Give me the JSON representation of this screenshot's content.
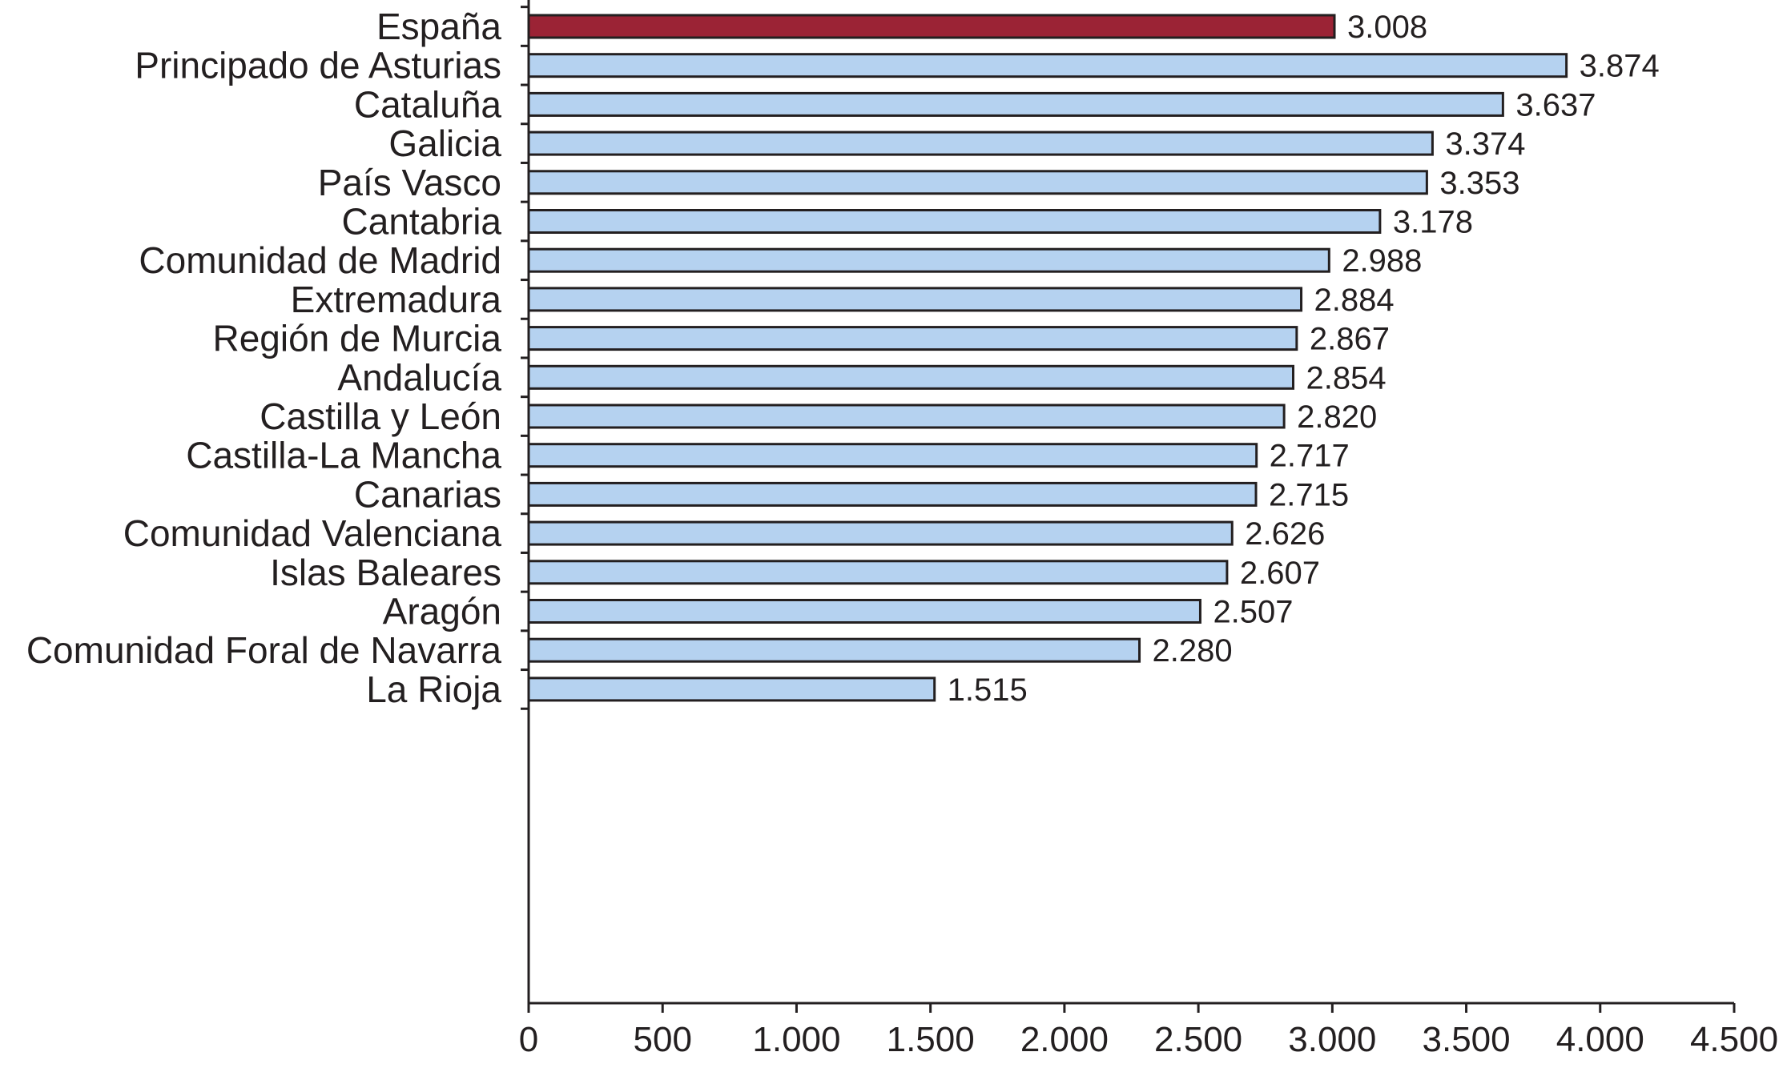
{
  "chart_data": {
    "type": "bar",
    "orientation": "horizontal",
    "title": "",
    "xlabel": "",
    "ylabel": "",
    "categories": [
      "España",
      "Principado de Asturias",
      "Cataluña",
      "Galicia",
      "País Vasco",
      "Cantabria",
      "Comunidad de Madrid",
      "Extremadura",
      "Región de Murcia",
      "Andalucía",
      "Castilla y León",
      "Castilla-La Mancha",
      "Canarias",
      "Comunidad Valenciana",
      "Islas Baleares",
      "Aragón",
      "Comunidad Foral de Navarra",
      "La Rioja"
    ],
    "values": [
      3008,
      3874,
      3637,
      3374,
      3353,
      3178,
      2988,
      2884,
      2867,
      2854,
      2820,
      2717,
      2715,
      2626,
      2607,
      2507,
      2280,
      1515
    ],
    "value_labels": [
      "3.008",
      "3.874",
      "3.637",
      "3.374",
      "3.353",
      "3.178",
      "2.988",
      "2.884",
      "2.867",
      "2.854",
      "2.820",
      "2.717",
      "2.715",
      "2.626",
      "2.607",
      "2.507",
      "2.280",
      "1.515"
    ],
    "xlim": [
      0,
      4500
    ],
    "x_ticks": [
      0,
      500,
      1000,
      1500,
      2000,
      2500,
      3000,
      3500,
      4000,
      4500
    ],
    "x_tick_labels": [
      "0",
      "500",
      "1.000",
      "1.500",
      "2.000",
      "2.500",
      "3.000",
      "3.500",
      "4.000",
      "4.500"
    ],
    "grid": false,
    "highlight_index": 0,
    "colors": {
      "highlight": "#9b2335",
      "bar": "#b5d2f0",
      "outline": "#231f20",
      "text": "#231f20"
    }
  }
}
